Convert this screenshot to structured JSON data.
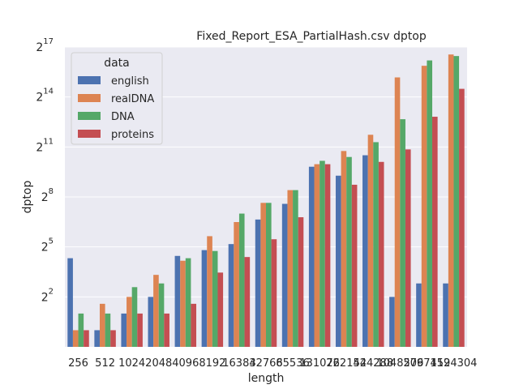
{
  "chart_data": {
    "type": "bar",
    "title": "Fixed_Report_ESA_PartialHash.csv dptop",
    "xlabel": "length",
    "ylabel": "dptop",
    "yscale": "log2",
    "ylim": [
      0.5,
      131072
    ],
    "yticks": [
      {
        "base": "2",
        "exp": "2",
        "value": 4
      },
      {
        "base": "2",
        "exp": "5",
        "value": 32
      },
      {
        "base": "2",
        "exp": "8",
        "value": 256
      },
      {
        "base": "2",
        "exp": "11",
        "value": 2048
      },
      {
        "base": "2",
        "exp": "14",
        "value": 16384
      },
      {
        "base": "2",
        "exp": "17",
        "value": 131072
      }
    ],
    "grid": true,
    "legend": {
      "title": "data",
      "placement": "top-left"
    },
    "categories": [
      "256",
      "512",
      "1024",
      "2048",
      "4096",
      "8192",
      "16384",
      "32768",
      "65536",
      "131072",
      "262144",
      "524288",
      "1048576",
      "2097152",
      "4194304"
    ],
    "series": [
      {
        "name": "english",
        "color": "#4c72b0",
        "values": [
          20,
          1,
          2,
          4,
          22,
          28,
          36,
          100,
          192,
          900,
          620,
          1450,
          4,
          7,
          7
        ]
      },
      {
        "name": "realDNA",
        "color": "#dd8452",
        "values": [
          1,
          3,
          4,
          10,
          18,
          50,
          90,
          200,
          340,
          1000,
          1730,
          3400,
          37000,
          60000,
          96000
        ]
      },
      {
        "name": "DNA",
        "color": "#55a868",
        "values": [
          2,
          2,
          6,
          7,
          20,
          27,
          128,
          200,
          340,
          1150,
          1350,
          2500,
          6500,
          75000,
          90000
        ]
      },
      {
        "name": "proteins",
        "color": "#c44e52",
        "values": [
          1,
          1,
          2,
          2,
          3,
          11,
          21,
          44,
          110,
          1000,
          425,
          1100,
          1850,
          7200,
          23000
        ]
      }
    ]
  }
}
